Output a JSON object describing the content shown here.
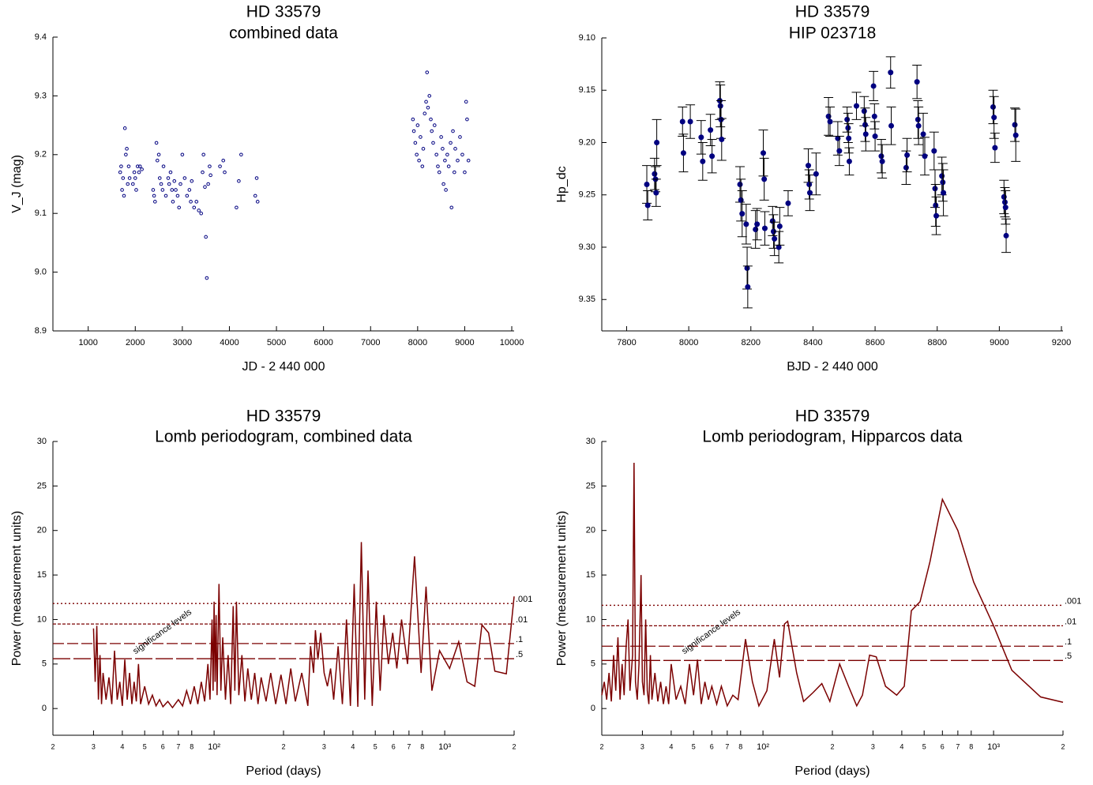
{
  "chart_data": [
    {
      "type": "scatter",
      "title": "HD 33579",
      "subtitle": "combined data",
      "x_label": "JD - 2 440 000",
      "y_label": "V_J (mag)",
      "color": "#000080",
      "xlim": [
        250,
        10050
      ],
      "xticks": [
        1000,
        2000,
        3000,
        4000,
        5000,
        6000,
        7000,
        8000,
        9000,
        10000
      ],
      "ylim": [
        8.9,
        9.4
      ],
      "yticks": [
        8.9,
        {
          "value": 9,
          "label": "9.0"
        },
        9.1,
        9.2,
        9.3,
        9.4
      ],
      "x": [
        1680,
        1700,
        1720,
        1740,
        1760,
        1780,
        1800,
        1820,
        1840,
        1860,
        1880,
        1950,
        1980,
        2000,
        2020,
        2050,
        2080,
        2100,
        2140,
        2380,
        2400,
        2420,
        2450,
        2470,
        2500,
        2520,
        2550,
        2580,
        2600,
        2650,
        2700,
        2720,
        2750,
        2780,
        2800,
        2830,
        2860,
        2900,
        2930,
        2960,
        3000,
        3050,
        3100,
        3150,
        3180,
        3200,
        3250,
        3300,
        3350,
        3400,
        3430,
        3450,
        3480,
        3500,
        3520,
        3550,
        3580,
        3600,
        3800,
        3870,
        3900,
        4150,
        4200,
        4250,
        4550,
        4580,
        4600,
        7900,
        7920,
        7950,
        7980,
        8000,
        8030,
        8060,
        8100,
        8120,
        8150,
        8180,
        8200,
        8220,
        8250,
        8280,
        8300,
        8330,
        8360,
        8400,
        8430,
        8460,
        8500,
        8530,
        8550,
        8580,
        8600,
        8630,
        8660,
        8700,
        8720,
        8750,
        8780,
        8800,
        8850,
        8900,
        8950,
        9000,
        9030,
        9050,
        9080
      ],
      "values": [
        9.17,
        9.18,
        9.14,
        9.16,
        9.13,
        9.245,
        9.2,
        9.21,
        9.15,
        9.18,
        9.16,
        9.15,
        9.17,
        9.16,
        9.14,
        9.18,
        9.17,
        9.18,
        9.175,
        9.14,
        9.13,
        9.12,
        9.22,
        9.19,
        9.2,
        9.16,
        9.15,
        9.14,
        9.18,
        9.13,
        9.16,
        9.15,
        9.17,
        9.14,
        9.12,
        9.155,
        9.14,
        9.13,
        9.11,
        9.15,
        9.2,
        9.16,
        9.13,
        9.14,
        9.12,
        9.155,
        9.11,
        9.12,
        9.105,
        9.1,
        9.17,
        9.2,
        9.145,
        9.06,
        8.99,
        9.15,
        9.18,
        9.165,
        9.18,
        9.19,
        9.17,
        9.11,
        9.155,
        9.2,
        9.13,
        9.16,
        9.12,
        9.26,
        9.24,
        9.22,
        9.2,
        9.25,
        9.19,
        9.23,
        9.18,
        9.21,
        9.27,
        9.29,
        9.34,
        9.28,
        9.3,
        9.26,
        9.24,
        9.22,
        9.25,
        9.2,
        9.18,
        9.17,
        9.23,
        9.21,
        9.15,
        9.19,
        9.14,
        9.2,
        9.18,
        9.22,
        9.11,
        9.24,
        9.17,
        9.21,
        9.19,
        9.23,
        9.2,
        9.17,
        9.29,
        9.26,
        9.19
      ]
    },
    {
      "type": "errorbar",
      "title": "HD 33579",
      "subtitle": "HIP 023718",
      "x_label": "BJD - 2 440 000",
      "y_label": "Hp_dc",
      "color": "#000080",
      "error_color": "#000000",
      "xlim": [
        7720,
        9205
      ],
      "xticks": [
        7800,
        8000,
        8200,
        8400,
        8600,
        8800,
        9000,
        9200
      ],
      "ylim": [
        9.38,
        9.1
      ],
      "yticks": [
        {
          "value": 9.1,
          "label": "9.10"
        },
        9.15,
        {
          "value": 9.2,
          "label": "9.20"
        },
        9.25,
        {
          "value": 9.3,
          "label": "9.30"
        },
        9.35
      ],
      "x": [
        7865,
        7868,
        7890,
        7893,
        7895,
        7897,
        7980,
        7983,
        8005,
        8040,
        8045,
        8070,
        8075,
        8100,
        8102,
        8104,
        8106,
        8165,
        8168,
        8172,
        8185,
        8188,
        8190,
        8215,
        8220,
        8240,
        8243,
        8245,
        8270,
        8273,
        8276,
        8290,
        8293,
        8320,
        8385,
        8388,
        8390,
        8410,
        8450,
        8455,
        8480,
        8485,
        8510,
        8513,
        8515,
        8517,
        8540,
        8565,
        8568,
        8570,
        8595,
        8598,
        8600,
        8620,
        8623,
        8650,
        8652,
        8700,
        8703,
        8735,
        8738,
        8740,
        8755,
        8760,
        8790,
        8793,
        8795,
        8797,
        8815,
        8818,
        8820,
        8980,
        8983,
        8986,
        9015,
        9018,
        9020,
        9022,
        9050,
        9053
      ],
      "values": [
        9.24,
        9.26,
        9.23,
        9.235,
        9.248,
        9.2,
        9.18,
        9.21,
        9.18,
        9.195,
        9.218,
        9.188,
        9.213,
        9.16,
        9.165,
        9.178,
        9.197,
        9.24,
        9.255,
        9.268,
        9.278,
        9.32,
        9.338,
        9.283,
        9.278,
        9.21,
        9.235,
        9.282,
        9.275,
        9.285,
        9.292,
        9.3,
        9.28,
        9.258,
        9.222,
        9.24,
        9.248,
        9.23,
        9.175,
        9.18,
        9.196,
        9.208,
        9.178,
        9.186,
        9.196,
        9.218,
        9.165,
        9.17,
        9.183,
        9.192,
        9.146,
        9.175,
        9.194,
        9.213,
        9.218,
        9.133,
        9.184,
        9.224,
        9.212,
        9.142,
        9.178,
        9.184,
        9.192,
        9.213,
        9.208,
        9.244,
        9.26,
        9.27,
        9.232,
        9.238,
        9.248,
        9.166,
        9.176,
        9.205,
        9.252,
        9.257,
        9.262,
        9.289,
        9.183,
        9.193
      ],
      "errors": [
        0.018,
        0.014,
        0.015,
        0.012,
        0.013,
        0.022,
        0.014,
        0.018,
        0.016,
        0.016,
        0.018,
        0.015,
        0.016,
        0.018,
        0.02,
        0.018,
        0.02,
        0.017,
        0.02,
        0.022,
        0.019,
        0.02,
        0.02,
        0.018,
        0.015,
        0.022,
        0.02,
        0.016,
        0.014,
        0.016,
        0.016,
        0.015,
        0.018,
        0.012,
        0.016,
        0.014,
        0.017,
        0.02,
        0.018,
        0.014,
        0.016,
        0.014,
        0.012,
        0.014,
        0.014,
        0.013,
        0.013,
        0.014,
        0.016,
        0.016,
        0.014,
        0.012,
        0.014,
        0.016,
        0.016,
        0.015,
        0.018,
        0.016,
        0.016,
        0.016,
        0.018,
        0.018,
        0.02,
        0.018,
        0.018,
        0.018,
        0.02,
        0.018,
        0.018,
        0.018,
        0.022,
        0.016,
        0.02,
        0.014,
        0.016,
        0.014,
        0.016,
        0.016,
        0.016,
        0.025
      ]
    },
    {
      "type": "periodogram",
      "title": "HD 33579",
      "subtitle": "Lomb periodogram, combined data",
      "x_label": "Period (days)",
      "y_label": "Power (measurement units)",
      "color": "#7b0000",
      "x_scale": "log",
      "annotation": "significance levels",
      "xlim": [
        20,
        2000
      ],
      "xticks": [
        {
          "value": 20,
          "label": "2"
        },
        {
          "value": 30,
          "label": "3"
        },
        {
          "value": 40,
          "label": "4"
        },
        {
          "value": 50,
          "label": "5"
        },
        {
          "value": 60,
          "label": "6"
        },
        {
          "value": 70,
          "label": "7"
        },
        {
          "value": 80,
          "label": "8"
        },
        {
          "value": 100,
          "label": "10²"
        },
        {
          "value": 200,
          "label": "2"
        },
        {
          "value": 300,
          "label": "3"
        },
        {
          "value": 400,
          "label": "4"
        },
        {
          "value": 500,
          "label": "5"
        },
        {
          "value": 600,
          "label": "6"
        },
        {
          "value": 700,
          "label": "7"
        },
        {
          "value": 800,
          "label": "8"
        },
        {
          "value": 1000,
          "label": "10³"
        },
        {
          "value": 2000,
          "label": "2"
        }
      ],
      "ylim": [
        -3,
        30
      ],
      "yticks": [
        0,
        5,
        10,
        15,
        20,
        25,
        30
      ],
      "levels": [
        {
          "label": ".001",
          "value": 11.8,
          "dash": "2,3"
        },
        {
          "label": ".01",
          "value": 9.5,
          "dash": "4,2"
        },
        {
          "label": ".1",
          "value": 7.3,
          "dash": "14,4"
        },
        {
          "label": ".5",
          "value": 5.6,
          "dash": "22,4"
        }
      ],
      "x": [
        30,
        30.5,
        31,
        31.5,
        32,
        32.5,
        33,
        34,
        35,
        36,
        37,
        38,
        39,
        40,
        41,
        42,
        43,
        44,
        45,
        46,
        47,
        48,
        50,
        52,
        54,
        56,
        58,
        60,
        63,
        66,
        70,
        73,
        76,
        79,
        82,
        85,
        88,
        91,
        94,
        96,
        98,
        99,
        100,
        101,
        102,
        103,
        105,
        107,
        109,
        112,
        115,
        118,
        121,
        123,
        125,
        128,
        132,
        136,
        140,
        145,
        150,
        155,
        160,
        168,
        176,
        185,
        195,
        205,
        215,
        225,
        240,
        255,
        262,
        270,
        275,
        282,
        290,
        300,
        310,
        320,
        330,
        345,
        360,
        375,
        390,
        405,
        420,
        435,
        450,
        465,
        485,
        505,
        525,
        545,
        570,
        595,
        620,
        650,
        690,
        740,
        790,
        830,
        880,
        950,
        1050,
        1150,
        1250,
        1350,
        1450,
        1550,
        1650,
        1850,
        2000
      ],
      "values": [
        9,
        3,
        9.3,
        1,
        6,
        0.5,
        4,
        1,
        3.5,
        0.5,
        6.5,
        1,
        3,
        0.3,
        5.5,
        1,
        4,
        0.5,
        3,
        0.8,
        5,
        0.5,
        2.5,
        0.5,
        1.5,
        0.3,
        1,
        0.2,
        0.8,
        0.1,
        1,
        0.3,
        2,
        0.5,
        2.5,
        0.5,
        3,
        0.8,
        5,
        1,
        10,
        2,
        12,
        3,
        10.5,
        1.5,
        14,
        2,
        8,
        1,
        6,
        0.5,
        11.5,
        2,
        12,
        1.5,
        6,
        0.8,
        4.5,
        1,
        4,
        0.5,
        3.5,
        0.8,
        4,
        0.5,
        3.8,
        0.5,
        4.5,
        0.8,
        4,
        0.3,
        7,
        4,
        8.8,
        5.5,
        8.5,
        4,
        2.5,
        4.5,
        1,
        7,
        0.5,
        10,
        0.3,
        14,
        0.2,
        18.7,
        1,
        15.5,
        0.3,
        12,
        2,
        10.5,
        5,
        8.5,
        4.5,
        10,
        5,
        17.1,
        4,
        13.7,
        2,
        6.5,
        4.5,
        7.5,
        3,
        2.5,
        9.4,
        8.5,
        4.2,
        3.9,
        12.6
      ]
    },
    {
      "type": "periodogram",
      "title": "HD 33579",
      "subtitle": "Lomb periodogram, Hipparcos data",
      "x_label": "Period (days)",
      "y_label": "Power (measurement units)",
      "color": "#7b0000",
      "x_scale": "log",
      "annotation": "significance levels",
      "xlim": [
        20,
        2000
      ],
      "xticks": [
        {
          "value": 20,
          "label": "2"
        },
        {
          "value": 30,
          "label": "3"
        },
        {
          "value": 40,
          "label": "4"
        },
        {
          "value": 50,
          "label": "5"
        },
        {
          "value": 60,
          "label": "6"
        },
        {
          "value": 70,
          "label": "7"
        },
        {
          "value": 80,
          "label": "8"
        },
        {
          "value": 100,
          "label": "10²"
        },
        {
          "value": 200,
          "label": "2"
        },
        {
          "value": 300,
          "label": "3"
        },
        {
          "value": 400,
          "label": "4"
        },
        {
          "value": 500,
          "label": "5"
        },
        {
          "value": 600,
          "label": "6"
        },
        {
          "value": 700,
          "label": "7"
        },
        {
          "value": 800,
          "label": "8"
        },
        {
          "value": 1000,
          "label": "10³"
        },
        {
          "value": 2000,
          "label": "2"
        }
      ],
      "ylim": [
        -3,
        30
      ],
      "yticks": [
        0,
        5,
        10,
        15,
        20,
        25,
        30
      ],
      "levels": [
        {
          "label": ".001",
          "value": 11.6,
          "dash": "2,3"
        },
        {
          "label": ".01",
          "value": 9.3,
          "dash": "4,2"
        },
        {
          "label": ".1",
          "value": 7,
          "dash": "14,4"
        },
        {
          "label": ".5",
          "value": 5.4,
          "dash": "22,4"
        }
      ],
      "x": [
        20,
        20.5,
        21,
        21.5,
        22,
        22.5,
        23,
        23.5,
        24,
        24.5,
        25,
        25.5,
        26,
        26.5,
        27.2,
        27.6,
        28,
        28.5,
        29,
        29.6,
        30,
        30.5,
        31,
        31.5,
        32,
        32.5,
        33,
        34,
        35,
        36,
        37,
        38,
        39,
        40,
        42,
        44,
        46,
        48,
        50,
        52,
        54,
        56,
        58,
        60,
        63,
        66,
        70,
        74,
        78,
        84,
        90,
        96,
        104,
        112,
        118,
        124,
        128,
        140,
        150,
        165,
        180,
        195,
        215,
        235,
        255,
        270,
        290,
        310,
        340,
        380,
        410,
        440,
        480,
        530,
        600,
        700,
        820,
        1000,
        1200,
        1600,
        2000
      ],
      "values": [
        1.5,
        3,
        1,
        4,
        0.8,
        6,
        2,
        8,
        1,
        5,
        1.5,
        7,
        10,
        2,
        6,
        27.6,
        3,
        1,
        5,
        15,
        3,
        1.5,
        10,
        2,
        0.5,
        6,
        1,
        4,
        0.8,
        3,
        0.5,
        2.5,
        0.5,
        5,
        1,
        2.5,
        0.5,
        5,
        1.5,
        5.5,
        0.5,
        3,
        1,
        2.5,
        0.5,
        2.5,
        0.3,
        1.5,
        1,
        7.8,
        3,
        0.3,
        2,
        7.8,
        3.5,
        9.5,
        9.8,
        4,
        0.8,
        1.8,
        2.8,
        0.8,
        5,
        2.5,
        0.3,
        1.5,
        6,
        5.8,
        2.5,
        1.5,
        2.5,
        11,
        12,
        16.5,
        23.5,
        20,
        14.2,
        9.3,
        4.3,
        1.3,
        0.7
      ]
    }
  ]
}
